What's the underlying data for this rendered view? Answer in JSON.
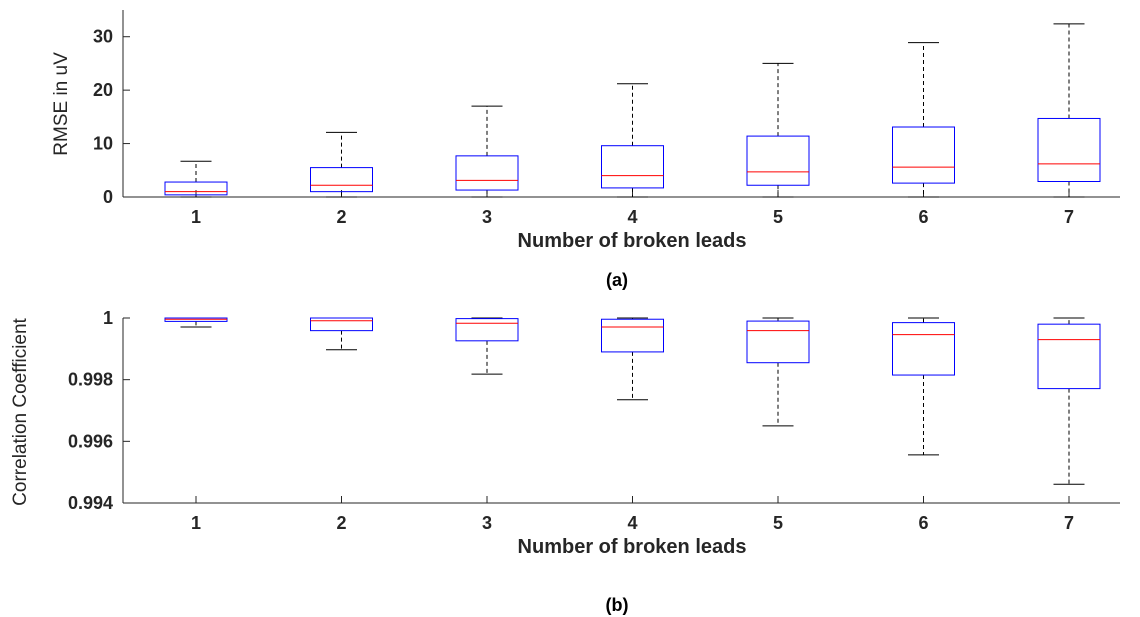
{
  "chart_data": [
    {
      "type": "box",
      "panel_label": "(a)",
      "xlabel": "Number of broken leads",
      "ylabel": "RMSE in uV",
      "categories": [
        "1",
        "2",
        "3",
        "4",
        "5",
        "6",
        "7"
      ],
      "ylim": [
        0,
        35
      ],
      "yticks": [
        0,
        10,
        20,
        30
      ],
      "ytick_labels": [
        "0",
        "10",
        "20",
        "30"
      ],
      "grid": false,
      "boxes": [
        {
          "whisker_low": 0,
          "q1": 0.4,
          "median": 1.0,
          "q3": 2.8,
          "whisker_high": 6.7
        },
        {
          "whisker_low": 0,
          "q1": 1.0,
          "median": 2.2,
          "q3": 5.5,
          "whisker_high": 12.1
        },
        {
          "whisker_low": 0,
          "q1": 1.3,
          "median": 3.1,
          "q3": 7.7,
          "whisker_high": 17.0
        },
        {
          "whisker_low": 0,
          "q1": 1.7,
          "median": 4.0,
          "q3": 9.6,
          "whisker_high": 21.2
        },
        {
          "whisker_low": 0,
          "q1": 2.2,
          "median": 4.7,
          "q3": 11.4,
          "whisker_high": 25.0
        },
        {
          "whisker_low": 0,
          "q1": 2.6,
          "median": 5.6,
          "q3": 13.1,
          "whisker_high": 28.9
        },
        {
          "whisker_low": 0,
          "q1": 2.9,
          "median": 6.2,
          "q3": 14.7,
          "whisker_high": 32.4
        }
      ]
    },
    {
      "type": "box",
      "panel_label": "(b)",
      "xlabel": "Number of broken leads",
      "ylabel": "Correlation Coefficient",
      "categories": [
        "1",
        "2",
        "3",
        "4",
        "5",
        "6",
        "7"
      ],
      "ylim": [
        0.994,
        1.0
      ],
      "yticks": [
        0.994,
        0.996,
        0.998,
        1.0
      ],
      "ytick_labels": [
        "0.994",
        "0.996",
        "0.998",
        "1"
      ],
      "grid": false,
      "boxes": [
        {
          "whisker_low": 0.99971,
          "q1": 0.99989,
          "median": 0.99996,
          "q3": 1.0,
          "whisker_high": 1.0
        },
        {
          "whisker_low": 0.99897,
          "q1": 0.99959,
          "median": 0.99991,
          "q3": 1.0,
          "whisker_high": 1.0
        },
        {
          "whisker_low": 0.99818,
          "q1": 0.99926,
          "median": 0.99983,
          "q3": 0.99998,
          "whisker_high": 1.0
        },
        {
          "whisker_low": 0.99735,
          "q1": 0.9989,
          "median": 0.99971,
          "q3": 0.99996,
          "whisker_high": 1.0
        },
        {
          "whisker_low": 0.9965,
          "q1": 0.99855,
          "median": 0.99959,
          "q3": 0.9999,
          "whisker_high": 1.0
        },
        {
          "whisker_low": 0.99556,
          "q1": 0.99815,
          "median": 0.99946,
          "q3": 0.99985,
          "whisker_high": 1.0
        },
        {
          "whisker_low": 0.99461,
          "q1": 0.99771,
          "median": 0.9993,
          "q3": 0.9998,
          "whisker_high": 1.0
        }
      ]
    }
  ],
  "colors": {
    "box": "#0000ff",
    "median": "#ff0000",
    "whisker": "#000000",
    "axis": "#262626"
  }
}
